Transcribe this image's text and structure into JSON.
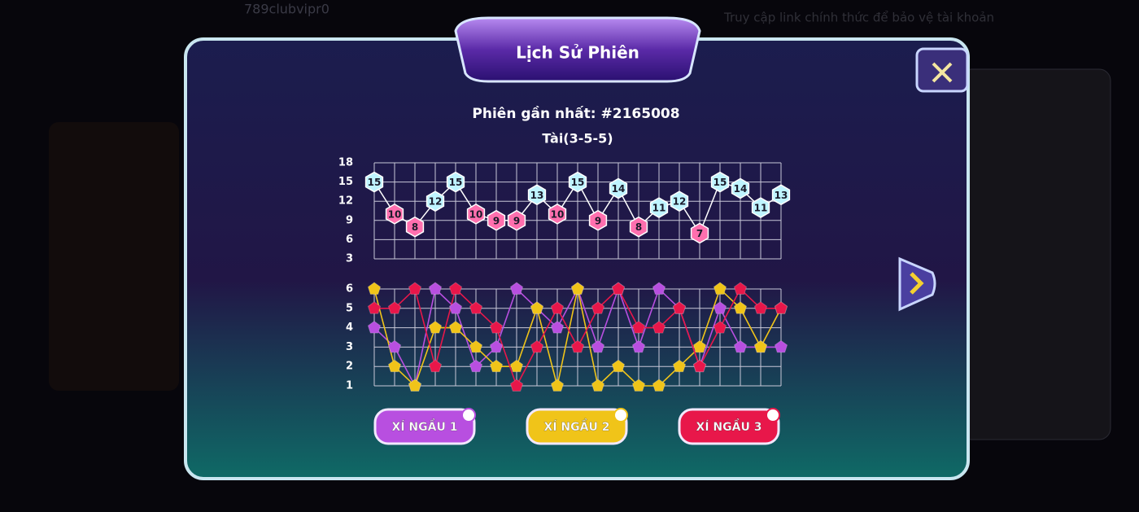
{
  "header": {
    "title": "Lịch Sử Phiên"
  },
  "session": {
    "label": "Phiên gần nhất: #2165008",
    "result": "Tài(3-5-5)"
  },
  "background": {
    "username": "789clubvipr0",
    "notice": "Truy cập link chính thức để bảo vệ tài khoản"
  },
  "chart_data": [
    {
      "type": "line",
      "line_color": "#ffffff",
      "values": [
        15,
        10,
        8,
        12,
        15,
        10,
        9,
        9,
        13,
        10,
        15,
        9,
        14,
        8,
        11,
        12,
        7,
        15,
        14,
        11,
        13
      ],
      "marker_colors": [
        "#bff4ff",
        "#ff6fae",
        "#ff6fae",
        "#bff4ff",
        "#bff4ff",
        "#ff6fae",
        "#ff6fae",
        "#ff6fae",
        "#bff4ff",
        "#ff6fae",
        "#bff4ff",
        "#ff6fae",
        "#bff4ff",
        "#ff6fae",
        "#bff4ff",
        "#bff4ff",
        "#ff6fae",
        "#bff4ff",
        "#bff4ff",
        "#bff4ff",
        "#bff4ff"
      ],
      "ylim": [
        3,
        18
      ],
      "yticks": [
        3,
        6,
        9,
        12,
        15,
        18
      ],
      "grid": true
    },
    {
      "type": "line",
      "series": [
        {
          "name": "XÍ NGẦU 1",
          "color": "#b84fe0",
          "values": [
            4,
            3,
            1,
            6,
            5,
            2,
            3,
            6,
            5,
            4,
            6,
            3,
            6,
            3,
            6,
            5,
            2,
            5,
            3,
            3,
            3
          ]
        },
        {
          "name": "XÍ NGẦU 2",
          "color": "#f0c419",
          "values": [
            6,
            2,
            1,
            4,
            4,
            3,
            2,
            2,
            5,
            1,
            6,
            1,
            2,
            1,
            1,
            2,
            3,
            6,
            5,
            3,
            5
          ]
        },
        {
          "name": "XÍ NGẦU 3",
          "color": "#e8174a",
          "values": [
            5,
            5,
            6,
            2,
            6,
            5,
            4,
            1,
            3,
            5,
            3,
            5,
            6,
            4,
            4,
            5,
            2,
            4,
            6,
            5,
            5
          ]
        }
      ],
      "ylim": [
        1,
        6
      ],
      "yticks": [
        1,
        2,
        3,
        4,
        5,
        6
      ],
      "grid": true
    }
  ]
}
